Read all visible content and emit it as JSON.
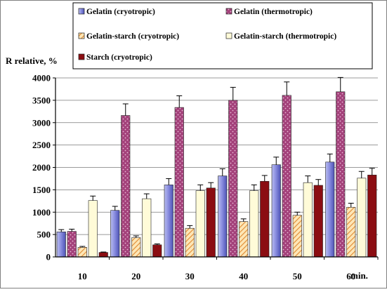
{
  "chart_data": {
    "type": "bar",
    "ylabel": "R relative, %",
    "xlabel": "min.",
    "categories": [
      "10",
      "20",
      "30",
      "40",
      "50",
      "60"
    ],
    "ylim": [
      0,
      4000
    ],
    "yticks": [
      "0",
      "500",
      "1000",
      "1500",
      "2000",
      "2500",
      "3000",
      "3500",
      "4000"
    ],
    "grid": true,
    "legend_position": "top",
    "error_bars": true,
    "series": [
      {
        "name": "Gelatin (cryotropic)",
        "color": "#7b7fd6",
        "pattern": "gradient",
        "values": [
          560,
          1040,
          1610,
          1810,
          2060,
          2120
        ],
        "errors": [
          50,
          90,
          140,
          160,
          170,
          180
        ]
      },
      {
        "name": "Gelatin (thermotropic)",
        "color": "#a3417a",
        "pattern": "dots",
        "values": [
          570,
          3160,
          3340,
          3500,
          3610,
          3690
        ],
        "errors": [
          50,
          260,
          260,
          290,
          300,
          320
        ]
      },
      {
        "name": "Gelatin-starch (cryotropic)",
        "color": "#f2b36b",
        "pattern": "hatch",
        "values": [
          215,
          430,
          640,
          790,
          930,
          1110
        ],
        "errors": [
          20,
          40,
          60,
          60,
          70,
          90
        ]
      },
      {
        "name": "Gelatin-starch (thermotropic)",
        "color": "#fffbd8",
        "pattern": "plain",
        "values": [
          1260,
          1300,
          1480,
          1480,
          1660,
          1760
        ],
        "errors": [
          100,
          110,
          130,
          130,
          150,
          150
        ]
      },
      {
        "name": "Starch (cryotropic)",
        "color": "#8b0d12",
        "pattern": "plain",
        "values": [
          100,
          270,
          1540,
          1690,
          1600,
          1830
        ],
        "errors": [
          10,
          20,
          120,
          130,
          130,
          150
        ]
      }
    ]
  }
}
